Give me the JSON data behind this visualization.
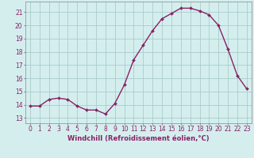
{
  "hours": [
    0,
    1,
    2,
    3,
    4,
    5,
    6,
    7,
    8,
    9,
    10,
    11,
    12,
    13,
    14,
    15,
    16,
    17,
    18,
    19,
    20,
    21,
    22,
    23
  ],
  "values": [
    13.9,
    13.9,
    14.4,
    14.5,
    14.4,
    13.9,
    13.6,
    13.6,
    13.3,
    14.1,
    15.5,
    17.4,
    18.5,
    19.6,
    20.5,
    20.9,
    21.3,
    21.3,
    21.1,
    20.8,
    20.0,
    18.2,
    16.2,
    15.2
  ],
  "line_color": "#882266",
  "marker": "D",
  "marker_size": 2.0,
  "bg_color": "#d4eeee",
  "grid_color": "#aacccc",
  "ylabel_ticks": [
    13,
    14,
    15,
    16,
    17,
    18,
    19,
    20,
    21
  ],
  "ylim": [
    12.6,
    21.8
  ],
  "xlim": [
    -0.5,
    23.5
  ],
  "xlabel": "Windchill (Refroidissement éolien,°C)",
  "tick_fontsize": 5.5,
  "xlabel_fontsize": 6.0,
  "xlabel_fontweight": "bold"
}
